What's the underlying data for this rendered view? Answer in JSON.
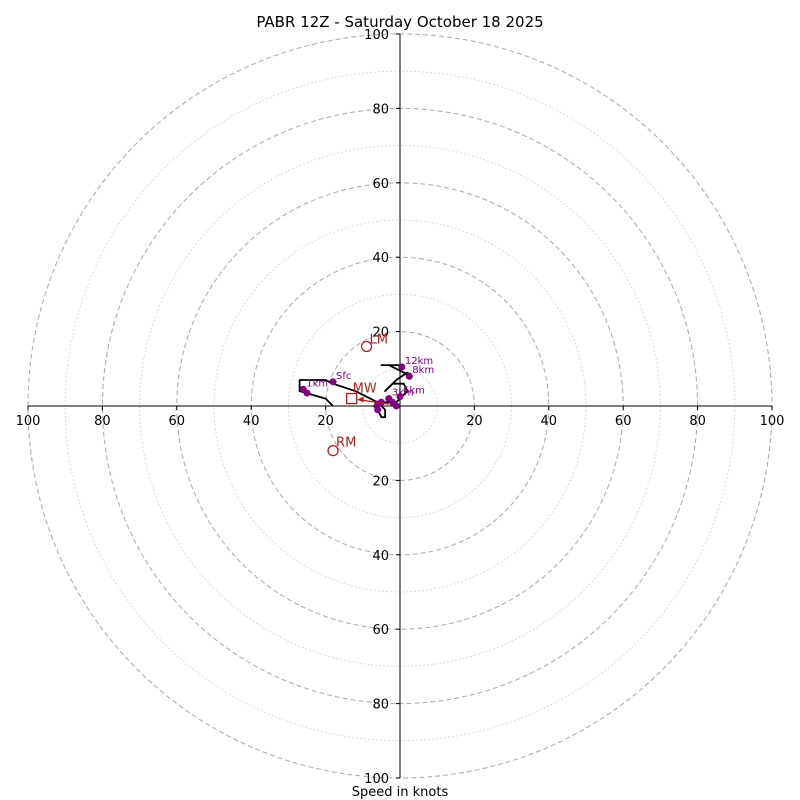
{
  "chart_data": {
    "type": "hodograph",
    "title": "PABR 12Z - Saturday October 18 2025",
    "xlabel": "Speed in knots",
    "range": 100,
    "ring_labels": [
      "20",
      "40",
      "60",
      "80",
      "100"
    ],
    "x_tick_labels": [
      "100",
      "80",
      "60",
      "40",
      "20",
      "20",
      "40",
      "60",
      "80",
      "100"
    ],
    "y_tick_labels": [
      "100",
      "80",
      "60",
      "40",
      "20",
      "20",
      "40",
      "60",
      "80",
      "100"
    ],
    "trace": [
      [
        -18,
        0
      ],
      [
        -20,
        2
      ],
      [
        -27,
        4
      ],
      [
        -27,
        7
      ],
      [
        -20,
        7
      ],
      [
        -18,
        6
      ],
      [
        -12,
        4
      ],
      [
        -10,
        3
      ],
      [
        -8,
        2
      ],
      [
        -6,
        1
      ],
      [
        -5,
        0
      ],
      [
        -4,
        -1
      ],
      [
        -4,
        -3
      ],
      [
        -5,
        -3
      ],
      [
        -6,
        -1
      ],
      [
        -7,
        0
      ],
      [
        -5,
        1
      ],
      [
        -3,
        1
      ],
      [
        -2,
        1
      ],
      [
        -1,
        1
      ],
      [
        0,
        2
      ],
      [
        1,
        3
      ],
      [
        2,
        4
      ],
      [
        1,
        6
      ],
      [
        -2,
        6
      ],
      [
        -4,
        4
      ],
      [
        -3,
        5
      ],
      [
        -1,
        7
      ],
      [
        2,
        9
      ],
      [
        3,
        8
      ],
      [
        -1,
        10
      ],
      [
        -3,
        11
      ],
      [
        -5,
        11
      ],
      [
        0,
        11
      ],
      [
        1,
        11
      ]
    ],
    "height_markers": [
      {
        "label": "Sfc",
        "u": -18,
        "v": 6.5
      },
      {
        "label": "1km",
        "u": -26,
        "v": 4.5
      },
      {
        "label": "3km",
        "u": -3,
        "v": 2
      },
      {
        "label": "6km",
        "u": 0,
        "v": 2.5
      },
      {
        "label": "8km",
        "u": 2.5,
        "v": 8
      },
      {
        "label": "12km",
        "u": 0.5,
        "v": 10.5
      }
    ],
    "extra_dots": [
      {
        "u": -25,
        "v": 3.5
      },
      {
        "u": -5,
        "v": 1
      },
      {
        "u": -6,
        "v": 0.5
      },
      {
        "u": -6,
        "v": -1
      },
      {
        "u": -2,
        "v": 1
      },
      {
        "u": -1,
        "v": 0
      }
    ],
    "storm_motion": {
      "LM": {
        "u": -9,
        "v": 16
      },
      "RM": {
        "u": -18,
        "v": -12
      },
      "MW": {
        "u": -13,
        "v": 2
      }
    },
    "colors": {
      "trace": "#000000",
      "markers": "#800080",
      "storm_motion": "#b22222",
      "grid": "#b0b0b0",
      "axis": "#000000"
    }
  }
}
